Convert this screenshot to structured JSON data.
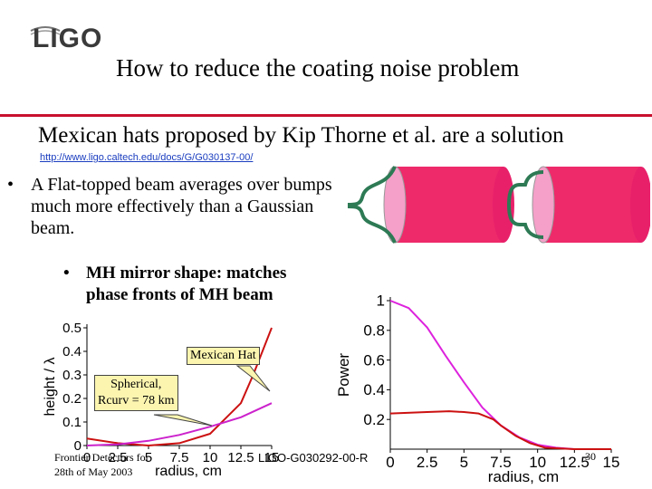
{
  "logo": {
    "text": "LIGO"
  },
  "title": "How to reduce the coating noise problem",
  "subtitle": "Mexican hats proposed by Kip Thorne et al. are a solution",
  "url": "http://www.ligo.caltech.edu/docs/G/G030137-00/",
  "bullets": [
    {
      "marker": "•",
      "text": "A Flat-topped beam averages over bumps much more effectively than a Gaussian beam."
    },
    {
      "marker": "•",
      "text": "MH mirror shape: matches phase fronts of  MH beam"
    }
  ],
  "callouts": {
    "mexican_hat": "Mexican Hat",
    "spherical_line1": "Spherical,",
    "spherical_line2": "Rcurv = 78 km"
  },
  "footer": {
    "left_line1": "Frontier Detectors for",
    "left_line2": "28th of May 2003",
    "center": "LIGO-G030292-00-R",
    "page": "30"
  },
  "colors": {
    "accent_rule": "#c8102e",
    "link": "#1a3dbf",
    "cylinder": "#ee2a6a",
    "profile": "#2d7a55",
    "callout_bg": "#fbf5b0"
  },
  "chart_data": [
    {
      "type": "line",
      "title": "",
      "xlabel": "radius, cm",
      "ylabel": "height / λ",
      "xticks": [
        "0",
        "2.5",
        "5",
        "7.5",
        "10",
        "12.5",
        "15"
      ],
      "yticks": [
        "0",
        "0.1",
        "0.2",
        "0.3",
        "0.4",
        "0.5"
      ],
      "xlim": [
        0,
        15
      ],
      "ylim": [
        0,
        0.5
      ],
      "series": [
        {
          "color": "#cc1111",
          "x": [
            0,
            2.5,
            5,
            7.5,
            10,
            12.5,
            13.5,
            15
          ],
          "y": [
            0.03,
            0.01,
            0.0,
            0.01,
            0.05,
            0.18,
            0.3,
            0.5
          ]
        },
        {
          "color": "#cc22cc",
          "x": [
            0,
            2.5,
            5,
            7.5,
            10,
            12.5,
            15
          ],
          "y": [
            0.0,
            0.005,
            0.02,
            0.045,
            0.08,
            0.12,
            0.18
          ]
        }
      ]
    },
    {
      "type": "line",
      "title": "",
      "xlabel": "radius, cm",
      "ylabel": "Power",
      "xticks": [
        "0",
        "2.5",
        "5",
        "7.5",
        "10",
        "12.5",
        "15"
      ],
      "yticks": [
        "0.2",
        "0.4",
        "0.6",
        "0.8",
        "1"
      ],
      "xlim": [
        0,
        15
      ],
      "ylim": [
        0,
        1
      ],
      "series": [
        {
          "color": "#dd22dd",
          "x": [
            0,
            1.25,
            2.5,
            3.75,
            5,
            6.25,
            7.5,
            8.75,
            10,
            11.25,
            12.5,
            15
          ],
          "y": [
            1.0,
            0.95,
            0.82,
            0.63,
            0.45,
            0.28,
            0.16,
            0.08,
            0.03,
            0.01,
            0.0,
            0.0
          ]
        },
        {
          "color": "#cc1111",
          "x": [
            0,
            2.5,
            4,
            5,
            6,
            7,
            7.5,
            8.5,
            9.5,
            10.5,
            12.5,
            15
          ],
          "y": [
            0.24,
            0.25,
            0.255,
            0.25,
            0.24,
            0.2,
            0.16,
            0.09,
            0.04,
            0.01,
            0.0,
            0.0
          ]
        }
      ]
    }
  ]
}
